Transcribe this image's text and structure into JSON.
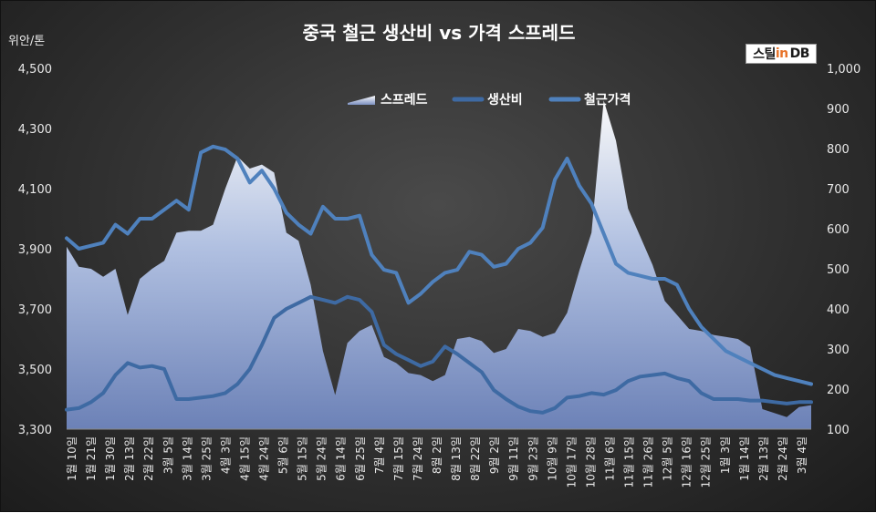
{
  "chart_data": {
    "type": "line",
    "title": "중국 철근 생산비 vs 가격 스프레드",
    "left_axis_unit": "위안/톤",
    "left_axis": {
      "range": [
        3300,
        4500
      ],
      "ticks": [
        "3,300",
        "3,500",
        "3,700",
        "3,900",
        "4,100",
        "4,300",
        "4,500"
      ]
    },
    "right_axis": {
      "range": [
        100,
        1000
      ],
      "ticks": [
        "100",
        "200",
        "300",
        "400",
        "500",
        "600",
        "700",
        "800",
        "900",
        "1,000"
      ]
    },
    "legend_position": "top-center",
    "x_labels": [
      "1월 10일",
      "1월 21일",
      "1월 30일",
      "2월 13일",
      "2월 22일",
      "3월 5일",
      "3월 14일",
      "3월 25일",
      "4월 3일",
      "4월 15일",
      "4월 24일",
      "5월 6일",
      "5월 15일",
      "5월 24일",
      "6월 14일",
      "6월 25일",
      "7월 4일",
      "7월 15일",
      "7월 24일",
      "8월 2일",
      "8월 13일",
      "8월 22일",
      "9월 2일",
      "9월 11일",
      "9월 23일",
      "10월 9일",
      "10월 17일",
      "10월 28일",
      "11월 6일",
      "11월 15일",
      "11월 26일",
      "12월 5일",
      "12월 16일",
      "12월 25일",
      "1월 3일",
      "1월 14일",
      "2월 13일",
      "2월 24일",
      "3월 4일"
    ],
    "series": [
      {
        "name": "스프레드",
        "axis": "right",
        "kind": "area",
        "values": [
          555,
          505,
          500,
          480,
          500,
          385,
          475,
          500,
          520,
          590,
          595,
          595,
          610,
          700,
          780,
          750,
          760,
          740,
          590,
          570,
          460,
          295,
          185,
          315,
          345,
          360,
          280,
          265,
          240,
          235,
          220,
          235,
          325,
          330,
          320,
          290,
          300,
          350,
          345,
          330,
          340,
          390,
          495,
          590,
          920,
          820,
          650,
          580,
          510,
          420,
          385,
          350,
          345,
          335,
          330,
          325,
          305,
          150,
          140,
          130,
          155,
          160
        ]
      },
      {
        "name": "생산비",
        "axis": "left",
        "kind": "line",
        "values": [
          3365,
          3370,
          3390,
          3420,
          3480,
          3520,
          3505,
          3510,
          3500,
          3400,
          3400,
          3405,
          3410,
          3420,
          3450,
          3500,
          3580,
          3670,
          3700,
          3720,
          3740,
          3730,
          3720,
          3740,
          3730,
          3690,
          3580,
          3550,
          3530,
          3510,
          3525,
          3575,
          3550,
          3520,
          3490,
          3430,
          3400,
          3375,
          3360,
          3355,
          3370,
          3405,
          3410,
          3420,
          3415,
          3430,
          3460,
          3475,
          3480,
          3485,
          3470,
          3460,
          3420,
          3400,
          3400,
          3400,
          3395,
          3395,
          3390,
          3385,
          3390,
          3390
        ]
      },
      {
        "name": "철근가격",
        "axis": "left",
        "kind": "line",
        "values": [
          3935,
          3900,
          3910,
          3920,
          3980,
          3950,
          4000,
          4000,
          4030,
          4060,
          4030,
          4220,
          4240,
          4230,
          4200,
          4120,
          4160,
          4100,
          4020,
          3980,
          3950,
          4040,
          4000,
          4000,
          4010,
          3880,
          3830,
          3820,
          3720,
          3750,
          3790,
          3820,
          3830,
          3890,
          3880,
          3840,
          3850,
          3900,
          3920,
          3970,
          4130,
          4200,
          4110,
          4050,
          3950,
          3850,
          3820,
          3810,
          3800,
          3800,
          3780,
          3700,
          3640,
          3600,
          3560,
          3540,
          3520,
          3500,
          3480,
          3470,
          3460,
          3450
        ]
      }
    ]
  },
  "logo": {
    "part1": "스틸",
    "part2": "in",
    "part3": "DB"
  },
  "colors": {
    "spread_top": "#ffffff",
    "spread_bottom": "#7b8fc0",
    "cost_line": "#3e6aa3",
    "price_line": "#4f81bd"
  }
}
